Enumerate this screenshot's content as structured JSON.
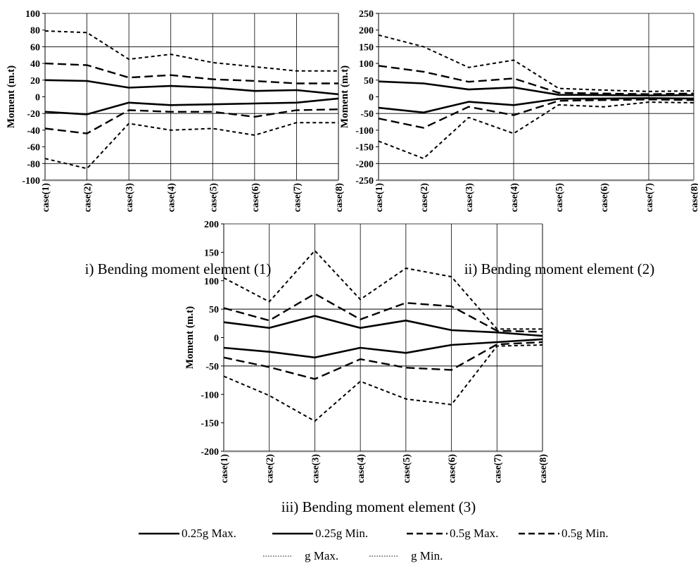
{
  "chart_data": [
    {
      "type": "line",
      "caption": "i) Bending moment element (1)",
      "ylabel": "Moment (m.t)",
      "ylim": [
        -100,
        100
      ],
      "yticks": [
        100,
        80,
        60,
        40,
        20,
        0,
        -20,
        -40,
        -60,
        -80,
        -100
      ],
      "hgrid": [
        60,
        -20,
        -80
      ],
      "vgrid": true,
      "categories": [
        "case(1)",
        "case(2)",
        "case(3)",
        "case(4)",
        "case(5)",
        "case(6)",
        "case(7)",
        "case(8)"
      ],
      "series": [
        {
          "name": "0.25g Max.",
          "values": [
            20,
            19,
            11,
            13,
            11,
            7,
            8,
            3
          ]
        },
        {
          "name": "0.25g Min.",
          "values": [
            -18,
            -21,
            -7,
            -10,
            -9,
            -8,
            -7,
            -2
          ]
        },
        {
          "name": "0.5g Max.",
          "values": [
            40,
            38,
            23,
            26,
            21,
            19,
            16,
            16
          ]
        },
        {
          "name": "0.5g Min.",
          "values": [
            -38,
            -44,
            -16,
            -18,
            -18,
            -24,
            -16,
            -15
          ]
        },
        {
          "name": "g Max.",
          "values": [
            79,
            77,
            45,
            51,
            41,
            36,
            31,
            31
          ]
        },
        {
          "name": "g Min.",
          "values": [
            -74,
            -86,
            -32,
            -40,
            -38,
            -46,
            -31,
            -31
          ]
        }
      ]
    },
    {
      "type": "line",
      "caption": "ii) Bending moment element (2)",
      "ylabel": "Moment (m.t)",
      "ylim": [
        -250,
        250
      ],
      "yticks": [
        250,
        200,
        150,
        100,
        50,
        0,
        -50,
        -100,
        -150,
        -200,
        -250
      ],
      "hgrid": [
        150,
        -50,
        -200
      ],
      "vgrid": false,
      "vgrid_at": [
        3,
        6
      ],
      "categories": [
        "case(1)",
        "case(2)",
        "case(3)",
        "case(4)",
        "case(5)",
        "case(6)",
        "case(7)",
        "case(8)"
      ],
      "series": [
        {
          "name": "0.25g Max.",
          "values": [
            46,
            40,
            22,
            28,
            6,
            5,
            4,
            5
          ]
        },
        {
          "name": "0.25g Min.",
          "values": [
            -33,
            -47,
            -15,
            -25,
            -6,
            -5,
            -4,
            -5
          ]
        },
        {
          "name": "0.5g Max.",
          "values": [
            93,
            75,
            45,
            55,
            12,
            10,
            8,
            10
          ]
        },
        {
          "name": "0.5g Min.",
          "values": [
            -65,
            -93,
            -30,
            -55,
            -12,
            -10,
            -8,
            -10
          ]
        },
        {
          "name": "g Max.",
          "values": [
            185,
            150,
            88,
            110,
            25,
            20,
            16,
            18
          ]
        },
        {
          "name": "g Min.",
          "values": [
            -133,
            -185,
            -62,
            -110,
            -24,
            -30,
            -16,
            -18
          ]
        }
      ]
    },
    {
      "type": "line",
      "caption": "iii) Bending moment element (3)",
      "ylabel": "Moment (m.t)",
      "ylim": [
        -200,
        200
      ],
      "yticks": [
        200,
        150,
        100,
        50,
        0,
        -50,
        -100,
        -150,
        -200
      ],
      "hgrid": [
        50,
        -50
      ],
      "vgrid": true,
      "categories": [
        "case(1)",
        "case(2)",
        "case(3)",
        "case(4)",
        "case(5)",
        "case(6)",
        "case(7)",
        "case(8)"
      ],
      "series": [
        {
          "name": "0.25g Max.",
          "values": [
            27,
            17,
            38,
            17,
            30,
            13,
            9,
            3
          ]
        },
        {
          "name": "0.25g Min.",
          "values": [
            -18,
            -25,
            -35,
            -18,
            -27,
            -13,
            -8,
            -3
          ]
        },
        {
          "name": "0.5g Max.",
          "values": [
            52,
            30,
            77,
            32,
            61,
            55,
            12,
            10
          ]
        },
        {
          "name": "0.5g Min.",
          "values": [
            -35,
            -52,
            -73,
            -38,
            -53,
            -57,
            -12,
            -8
          ]
        },
        {
          "name": "g Max.",
          "values": [
            105,
            63,
            153,
            67,
            122,
            107,
            15,
            15
          ]
        },
        {
          "name": "g Min.",
          "values": [
            -68,
            -102,
            -147,
            -77,
            -108,
            -118,
            -15,
            -13
          ]
        }
      ]
    }
  ],
  "legend": {
    "row1": [
      "0.25g Max.",
      "0.25g Min.",
      "0.5g Max.",
      "0.5g Min."
    ],
    "row2": [
      "g Max.",
      "g Min."
    ]
  }
}
